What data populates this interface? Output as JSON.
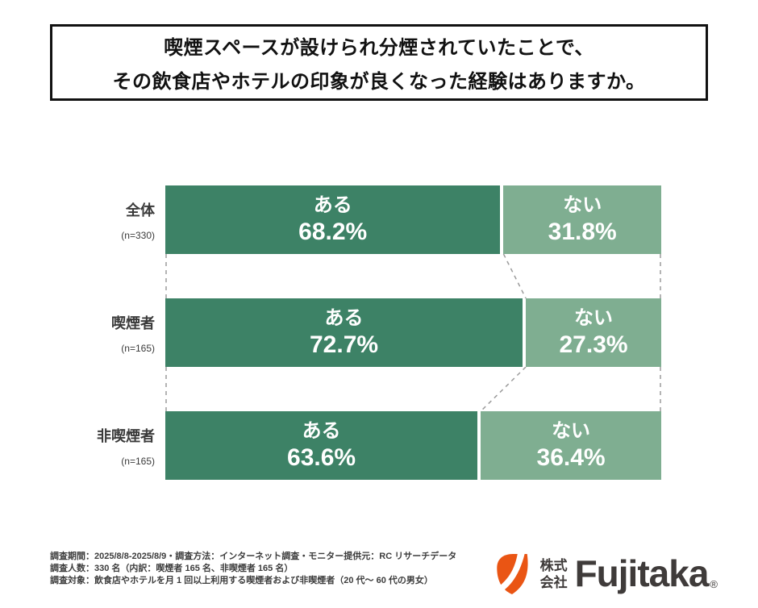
{
  "title": {
    "line1": "喫煙スペースが設けられ分煙されていたことで、",
    "line2": "その飲食店やホテルの印象が良くなった経験はありますか。"
  },
  "chart_data": {
    "type": "bar",
    "orientation": "horizontal",
    "stacked": true,
    "unit": "%",
    "xlim": [
      0,
      100
    ],
    "legend": "none",
    "value_labels": "inside",
    "categories": [
      "全体",
      "喫煙者",
      "非喫煙者"
    ],
    "sample_labels": [
      "(n=330)",
      "(n=165)",
      "(n=165)"
    ],
    "series": [
      {
        "name": "ある",
        "color": "#3d8266",
        "values": [
          68.2,
          72.7,
          63.6
        ]
      },
      {
        "name": "ない",
        "color": "#7fae91",
        "values": [
          31.8,
          27.3,
          36.4
        ]
      }
    ]
  },
  "rows": [
    {
      "label": "全体",
      "n": "(n=330)",
      "aru": {
        "name": "ある",
        "value_text": "68.2%",
        "pct": 68.2
      },
      "nai": {
        "name": "ない",
        "value_text": "31.8%",
        "pct": 31.8
      }
    },
    {
      "label": "喫煙者",
      "n": "(n=165)",
      "aru": {
        "name": "ある",
        "value_text": "72.7%",
        "pct": 72.7
      },
      "nai": {
        "name": "ない",
        "value_text": "27.3%",
        "pct": 27.3
      }
    },
    {
      "label": "非喫煙者",
      "n": "(n=165)",
      "aru": {
        "name": "ある",
        "value_text": "63.6%",
        "pct": 63.6
      },
      "nai": {
        "name": "ない",
        "value_text": "36.4%",
        "pct": 36.4
      }
    }
  ],
  "footer": {
    "line1": "調査期間：2025/8/8-2025/8/9・調査方法：インターネット調査・モニター提供元：RC リサーチデータ",
    "line2": "調査人数：330 名（内訳：喫煙者 165 名、非喫煙者 165 名）",
    "line3": "調査対象：飲食店やホテルを月 1 回以上利用する喫煙者および非喫煙者（20 代～ 60 代の男女）"
  },
  "logo": {
    "company_top": "株式",
    "company_bottom": "会社",
    "brand": "Fujitaka",
    "registered": "®"
  },
  "colors": {
    "aru_green": "#3d8266",
    "nai_green": "#7fae91",
    "dashed_gray": "#9b9b9b",
    "logo_orange": "#ea5514",
    "logo_text": "#3f3b3a"
  }
}
